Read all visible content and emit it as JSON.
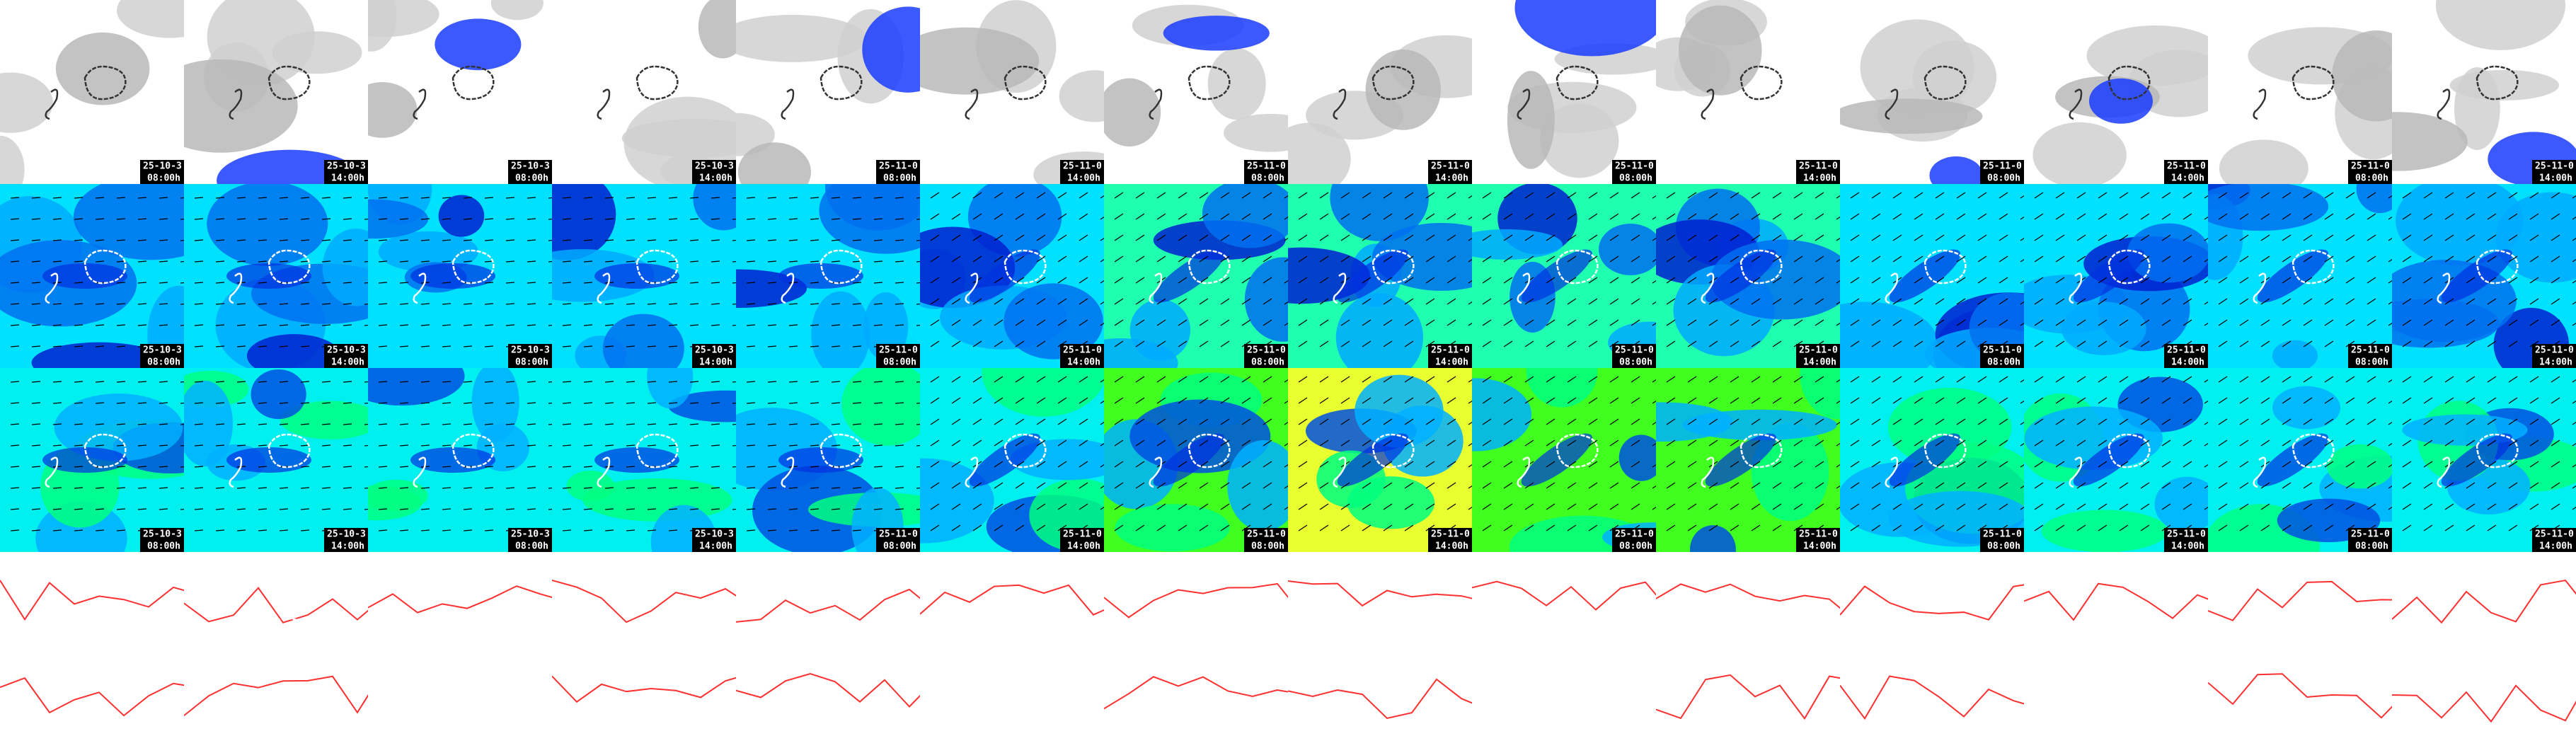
{
  "columns": [
    {
      "date": "25-10-3",
      "time": "08:00h"
    },
    {
      "date": "25-10-3",
      "time": "14:00h"
    },
    {
      "date": "25-10-3",
      "time": "08:00h"
    },
    {
      "date": "25-10-3",
      "time": "14:00h"
    },
    {
      "date": "25-11-0",
      "time": "08:00h"
    },
    {
      "date": "25-11-0",
      "time": "14:00h"
    },
    {
      "date": "25-11-0",
      "time": "08:00h"
    },
    {
      "date": "25-11-0",
      "time": "14:00h"
    },
    {
      "date": "25-11-0",
      "time": "08:00h"
    },
    {
      "date": "25-11-0",
      "time": "14:00h"
    },
    {
      "date": "25-11-0",
      "time": "08:00h"
    },
    {
      "date": "25-11-0",
      "time": "14:00h"
    },
    {
      "date": "25-11-0",
      "time": "08:00h"
    },
    {
      "date": "25-11-0",
      "time": "14:00h"
    }
  ]
}
